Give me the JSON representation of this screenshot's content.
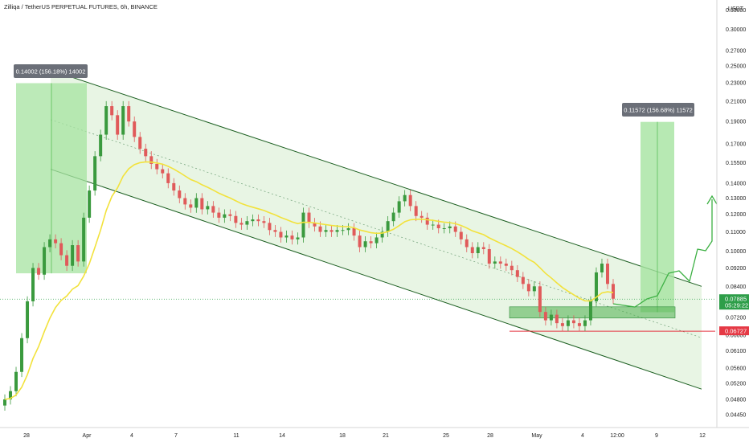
{
  "header": {
    "title": "Zilliqa / TetherUS PERPETUAL FUTURES, 6h, BINANCE"
  },
  "yaxis": {
    "unit": "USDT",
    "ticks": [
      "0.33000",
      "0.30000",
      "0.27000",
      "0.25000",
      "0.23000",
      "0.21000",
      "0.19000",
      "0.17000",
      "0.15500",
      "0.14000",
      "0.13000",
      "0.12000",
      "0.11000",
      "0.10000",
      "0.09200",
      "0.08400",
      "0.07200",
      "0.06600",
      "0.06100",
      "0.05600",
      "0.05200",
      "0.04800",
      "0.04450"
    ]
  },
  "xaxis": {
    "ticks": [
      "28",
      "Apr",
      "4",
      "7",
      "11",
      "14",
      "18",
      "21",
      "25",
      "28",
      "May",
      "4",
      "12:00",
      "9",
      "12"
    ]
  },
  "tags": {
    "price": {
      "value": "0.07885",
      "timer": "05:29:22"
    },
    "support": {
      "value": "0.06727"
    }
  },
  "measures": [
    {
      "label": "0.14002 (156.18%) 14002"
    },
    {
      "label": "0.11572 (156.68%) 11572"
    }
  ],
  "colors": {
    "bull": "#26a69a",
    "bear": "#ef5350",
    "candle_up": "#3a9a3e",
    "candle_down": "#e05a5a",
    "ma": "#f2e23c",
    "channel_fill": "#e8f5e4",
    "channel_line": "#1b5e20",
    "measure_fill": "#a5e3a0",
    "tag_bg": "#6b6f78",
    "support": "#e53945",
    "price_tag": "#2e9e49"
  },
  "chart_data": {
    "type": "candlestick",
    "title": "Zilliqa / TetherUS PERPETUAL FUTURES, 6h, BINANCE",
    "ylabel": "USDT",
    "ylim": [
      0.0425,
      0.34
    ],
    "yscale": "log",
    "last_price": 0.07885,
    "support_level": 0.06727,
    "moving_average": "yellow line",
    "descending_channel": {
      "upper_start": 0.245,
      "upper_end": 0.084,
      "lower_start": 0.15,
      "lower_end": 0.0505
    },
    "projection": "green zigzag path rising to about 0.13 with arrow",
    "measures": [
      {
        "from": 0.0896,
        "to": 0.2297,
        "label": "0.14002 (156.18%) 14002"
      },
      {
        "from": 0.0739,
        "to": 0.1896,
        "label": "0.11572 (156.68%) 11572"
      }
    ]
  }
}
